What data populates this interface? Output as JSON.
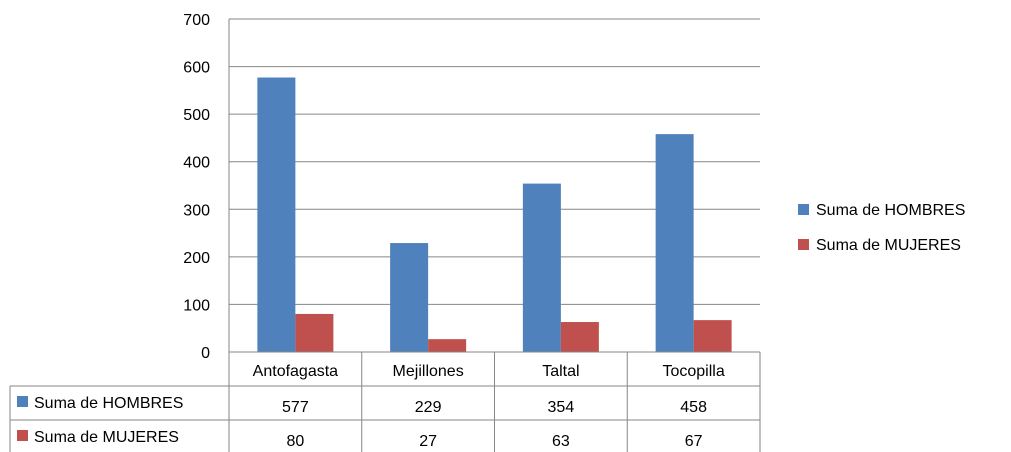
{
  "chart_data": {
    "type": "bar",
    "title": "",
    "xlabel": "",
    "ylabel": "",
    "categories": [
      "Antofagasta",
      "Mejillones",
      "Taltal",
      "Tocopilla"
    ],
    "series": [
      {
        "name": "Suma de HOMBRES",
        "values": [
          577,
          229,
          354,
          458
        ],
        "color": "#4F81BD"
      },
      {
        "name": "Suma de MUJERES",
        "values": [
          80,
          27,
          63,
          67
        ],
        "color": "#C0504D"
      }
    ],
    "ylim": [
      0,
      700
    ],
    "yticks": [
      "0",
      "100",
      "200",
      "300",
      "400",
      "500",
      "600",
      "700"
    ],
    "grid": true,
    "legend": "right",
    "data_table": true
  }
}
